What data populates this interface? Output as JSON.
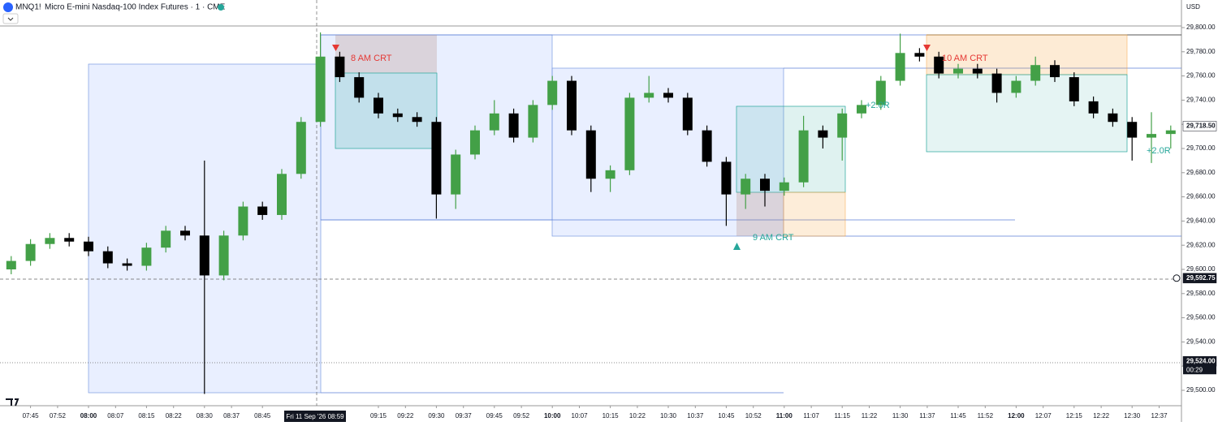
{
  "header": {
    "symbol": "MNQ1!",
    "title": "Micro E-mini Nasdaq-100 Index Futures · 1 · CME",
    "currency": "USD"
  },
  "chart_data": {
    "type": "candlestick",
    "x": [
      "07:40",
      "07:45",
      "07:50",
      "07:55",
      "08:00",
      "08:05",
      "08:10",
      "08:15",
      "08:20",
      "08:25",
      "08:30",
      "08:35",
      "08:40",
      "08:45",
      "08:50",
      "08:55",
      "09:00",
      "09:05",
      "09:10",
      "09:15",
      "09:20",
      "09:25",
      "09:30",
      "09:35",
      "09:40",
      "09:45",
      "09:50",
      "09:55",
      "10:00",
      "10:05",
      "10:10",
      "10:15",
      "10:20",
      "10:25",
      "10:30",
      "10:35",
      "10:40",
      "10:45",
      "10:50",
      "10:55",
      "11:00",
      "11:05",
      "11:10",
      "11:15",
      "11:20",
      "11:25",
      "11:30",
      "11:35",
      "11:40",
      "11:45",
      "11:50",
      "11:55",
      "12:00",
      "12:05",
      "12:10",
      "12:15",
      "12:20",
      "12:25",
      "12:30",
      "12:35",
      "12:40"
    ],
    "open": [
      29600,
      29607,
      29621,
      29626,
      29623,
      29615,
      29605,
      29603,
      29618,
      29632,
      29628,
      29595,
      29628,
      29652,
      29645,
      29679,
      29722,
      29776,
      29759,
      29742,
      29729,
      29726,
      29722,
      29662,
      29695,
      29715,
      29729,
      29709,
      29736,
      29756,
      29715,
      29675,
      29682,
      29742,
      29746,
      29742,
      29715,
      29689,
      29662,
      29675,
      29665,
      29672,
      29715,
      29709,
      29729,
      29736,
      29756,
      29779,
      29776,
      29762,
      29766,
      29762,
      29746,
      29756,
      29769,
      29759,
      29739,
      29729,
      29722,
      29709,
      29712
    ],
    "high": [
      29611,
      29625,
      29630,
      29630,
      29627,
      29619,
      29609,
      29622,
      29636,
      29636,
      29690,
      29632,
      29656,
      29656,
      29683,
      29726,
      29796,
      29780,
      29763,
      29746,
      29733,
      29730,
      29726,
      29699,
      29719,
      29740,
      29733,
      29740,
      29760,
      29760,
      29719,
      29686,
      29746,
      29760,
      29750,
      29746,
      29719,
      29693,
      29679,
      29679,
      29676,
      29727,
      29719,
      29733,
      29740,
      29760,
      29795,
      29783,
      29780,
      29770,
      29770,
      29766,
      29760,
      29776,
      29773,
      29763,
      29743,
      29733,
      29726,
      29730,
      29719
    ],
    "low": [
      29596,
      29603,
      29617,
      29619,
      29611,
      29601,
      29599,
      29599,
      29614,
      29624,
      29497,
      29591,
      29624,
      29641,
      29641,
      29675,
      29718,
      29755,
      29738,
      29725,
      29722,
      29718,
      29642,
      29650,
      29691,
      29711,
      29705,
      29705,
      29732,
      29711,
      29664,
      29664,
      29678,
      29738,
      29738,
      29711,
      29685,
      29636,
      29650,
      29652,
      29661,
      29668,
      29700,
      29690,
      29725,
      29732,
      29752,
      29772,
      29758,
      29758,
      29758,
      29738,
      29742,
      29752,
      29755,
      29735,
      29725,
      29718,
      29690,
      29688,
      29700
    ],
    "close": [
      29607,
      29621,
      29626,
      29623,
      29615,
      29605,
      29603,
      29618,
      29632,
      29628,
      29595,
      29628,
      29652,
      29645,
      29679,
      29722,
      29776,
      29759,
      29742,
      29729,
      29726,
      29722,
      29662,
      29695,
      29715,
      29729,
      29709,
      29736,
      29756,
      29715,
      29675,
      29682,
      29742,
      29746,
      29742,
      29715,
      29689,
      29662,
      29675,
      29665,
      29672,
      29715,
      29709,
      29729,
      29736,
      29756,
      29779,
      29776,
      29762,
      29766,
      29762,
      29746,
      29756,
      29769,
      29759,
      29739,
      29729,
      29722,
      29709,
      29712,
      29715
    ],
    "up_color": "#43a047",
    "down_color": "#000000",
    "ylim": [
      29500,
      29800
    ],
    "yticks": [
      {
        "value": 29800,
        "label": "29,800.00"
      },
      {
        "value": 29780,
        "label": "29,780.00"
      },
      {
        "value": 29760,
        "label": "29,760.00"
      },
      {
        "value": 29740,
        "label": "29,740.00"
      },
      {
        "value": 29720,
        "label": "29,720.00"
      },
      {
        "value": 29700,
        "label": "29,700.00"
      },
      {
        "value": 29680,
        "label": "29,680.00"
      },
      {
        "value": 29660,
        "label": "29,660.00"
      },
      {
        "value": 29640,
        "label": "29,640.00"
      },
      {
        "value": 29620,
        "label": "29,620.00"
      },
      {
        "value": 29600,
        "label": "29,600.00"
      },
      {
        "value": 29580,
        "label": "29,580.00"
      },
      {
        "value": 29560,
        "label": "29,560.00"
      },
      {
        "value": 29540,
        "label": "29,540.00"
      },
      {
        "value": 29520,
        "label": "29,520.00"
      },
      {
        "value": 29500,
        "label": "29,500.00"
      }
    ],
    "xticks": [
      "07:45",
      "07:52",
      "08:00",
      "08:07",
      "08:15",
      "08:22",
      "08:30",
      "08:37",
      "08:45",
      "09:15",
      "09:22",
      "09:30",
      "09:37",
      "09:45",
      "09:52",
      "10:00",
      "10:07",
      "10:15",
      "10:22",
      "10:30",
      "10:37",
      "10:45",
      "10:52",
      "11:00",
      "11:07",
      "11:15",
      "11:22",
      "11:30",
      "11:37",
      "11:45",
      "11:52",
      "12:00",
      "12:07",
      "12:15",
      "12:22",
      "12:30",
      "12:37"
    ],
    "crosshair_x_label": "Fri 11 Sep '26  08:59",
    "last_price": {
      "value": 29718.5,
      "label": "29,718.50"
    },
    "crosshair_price": {
      "value": 29592.75,
      "label": "29,592.75"
    },
    "alert_price": {
      "value": 29524,
      "label": "29,524.00",
      "countdown": "00:29"
    },
    "annotations": [
      "8 AM CRT",
      "9 AM CRT",
      "10 AM CRT",
      "+2.0R",
      "+2.0R"
    ]
  }
}
